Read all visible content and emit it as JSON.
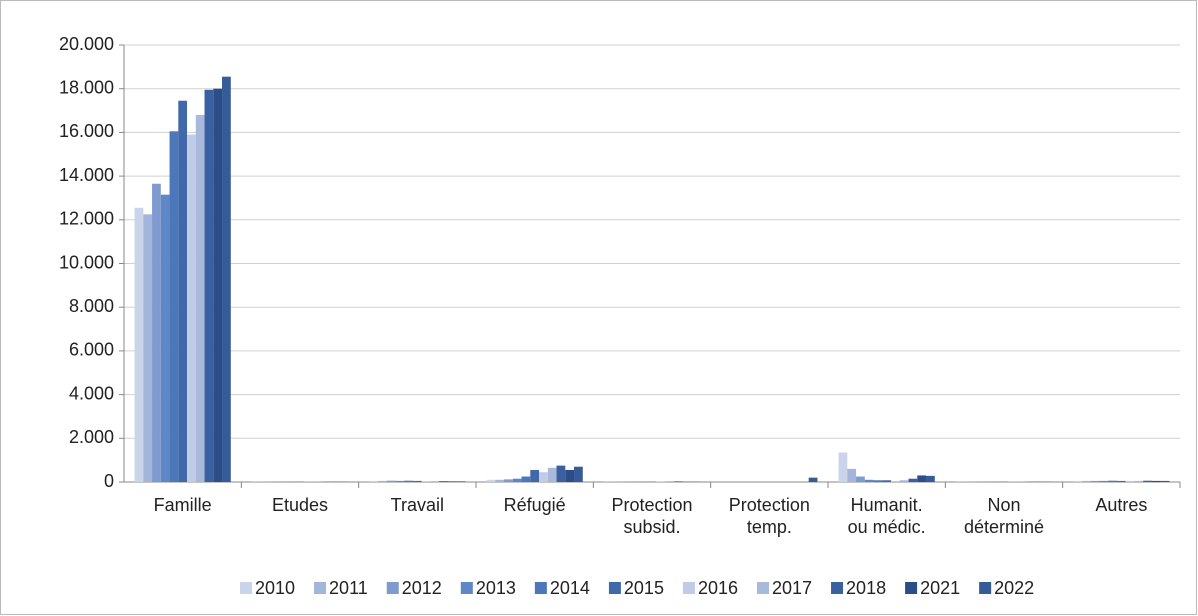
{
  "chart_data": {
    "type": "bar",
    "categories": [
      "Famille",
      "Etudes",
      "Travail",
      "Réfugié",
      "Protection\nsubsid.",
      "Protection\ntemp.",
      "Humanit.\nou médic.",
      "Non\ndéterminé",
      "Autres"
    ],
    "series": [
      {
        "name": "2010",
        "color": "#c9d3e9",
        "values": [
          12550,
          10,
          50,
          100,
          10,
          0,
          1350,
          10,
          50
        ]
      },
      {
        "name": "2011",
        "color": "#a3b5da",
        "values": [
          12250,
          10,
          50,
          100,
          10,
          0,
          600,
          10,
          50
        ]
      },
      {
        "name": "2012",
        "color": "#7f9ace",
        "values": [
          13650,
          10,
          60,
          120,
          10,
          0,
          250,
          10,
          50
        ]
      },
      {
        "name": "2013",
        "color": "#5f86c6",
        "values": [
          13150,
          10,
          50,
          150,
          10,
          0,
          100,
          10,
          50
        ]
      },
      {
        "name": "2014",
        "color": "#4d77bb",
        "values": [
          16050,
          10,
          60,
          250,
          10,
          0,
          80,
          10,
          60
        ]
      },
      {
        "name": "2015",
        "color": "#4168ab",
        "values": [
          17450,
          10,
          50,
          550,
          10,
          0,
          80,
          10,
          50
        ]
      },
      {
        "name": "2016",
        "color": "#c0cce6",
        "values": [
          15900,
          10,
          40,
          450,
          30,
          0,
          50,
          10,
          50
        ]
      },
      {
        "name": "2017",
        "color": "#a9b9dc",
        "values": [
          16800,
          10,
          40,
          650,
          40,
          0,
          80,
          10,
          50
        ]
      },
      {
        "name": "2018",
        "color": "#3b60a0",
        "values": [
          17950,
          10,
          40,
          750,
          30,
          0,
          150,
          10,
          60
        ]
      },
      {
        "name": "2021",
        "color": "#2c4d87",
        "values": [
          18000,
          10,
          30,
          550,
          10,
          0,
          300,
          10,
          50
        ]
      },
      {
        "name": "2022",
        "color": "#355b98",
        "values": [
          18550,
          10,
          30,
          700,
          10,
          200,
          280,
          10,
          50
        ]
      }
    ],
    "ylim": [
      0,
      20000
    ],
    "yticks": [
      0,
      {
        "value": 2000,
        "label": "2.000"
      },
      {
        "value": 4000,
        "label": "4.000"
      },
      {
        "value": 6000,
        "label": "6.000"
      },
      {
        "value": 8000,
        "label": "8.000"
      },
      {
        "value": 10000,
        "label": "10.000"
      },
      {
        "value": 12000,
        "label": "12.000"
      },
      {
        "value": 14000,
        "label": "14.000"
      },
      {
        "value": 16000,
        "label": "16.000"
      },
      {
        "value": 18000,
        "label": "18.000"
      },
      {
        "value": 20000,
        "label": "20.000"
      }
    ],
    "grid": true,
    "legend": "bottom"
  }
}
